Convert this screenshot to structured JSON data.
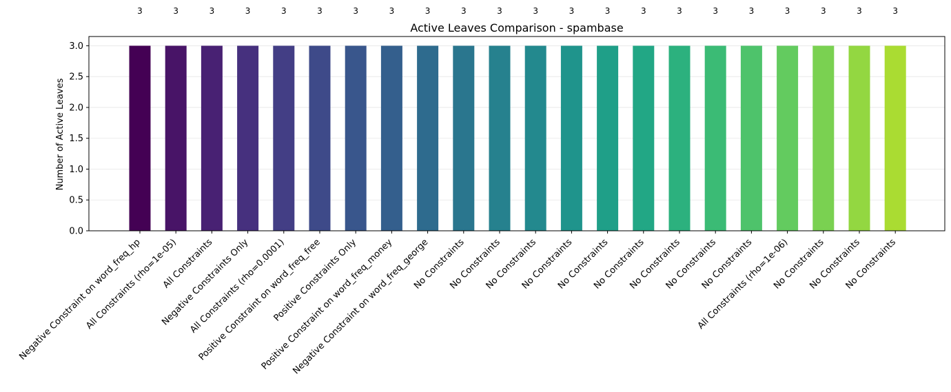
{
  "chart_data": {
    "type": "bar",
    "title": "Active Leaves Comparison - spambase",
    "xlabel": "",
    "ylabel": "Number of Active Leaves",
    "ylim": [
      0,
      3.15
    ],
    "yticks": [
      "0.0",
      "0.5",
      "1.0",
      "1.5",
      "2.0",
      "2.5",
      "3.0"
    ],
    "grid": "y",
    "categories": [
      "Negative Constraint on word_freq_hp",
      "All Constraints (rho=1e-05)",
      "All Constraints",
      "Negative Constraints Only",
      "All Constraints (rho=0.0001)",
      "Positive Constraint on word_freq_free",
      "Positive Constraints Only",
      "Positive Constraint on word_freq_money",
      "Negative Constraint on word_freq_george",
      "No Constraints",
      "No Constraints",
      "No Constraints",
      "No Constraints",
      "No Constraints",
      "No Constraints",
      "No Constraints",
      "No Constraints",
      "No Constraints",
      "All Constraints (rho=1e-06)",
      "No Constraints",
      "No Constraints",
      "No Constraints"
    ],
    "values": [
      3,
      3,
      3,
      3,
      3,
      3,
      3,
      3,
      3,
      3,
      3,
      3,
      3,
      3,
      3,
      3,
      3,
      3,
      3,
      3,
      3,
      3
    ],
    "value_labels": [
      "3",
      "3",
      "3",
      "3",
      "3",
      "3",
      "3",
      "3",
      "3",
      "3",
      "3",
      "3",
      "3",
      "3",
      "3",
      "3",
      "3",
      "3",
      "3",
      "3",
      "3",
      "3"
    ],
    "colors": [
      "#440154",
      "#481467",
      "#482173",
      "#46307e",
      "#433e85",
      "#3e4a89",
      "#39568c",
      "#345f8d",
      "#2e6b8e",
      "#2a768e",
      "#26818e",
      "#23898e",
      "#1f948c",
      "#1f9f88",
      "#22a785",
      "#2cb17e",
      "#3bbb75",
      "#4ec36b",
      "#63cb5f",
      "#7ad151",
      "#93d741",
      "#aadc32"
    ]
  }
}
